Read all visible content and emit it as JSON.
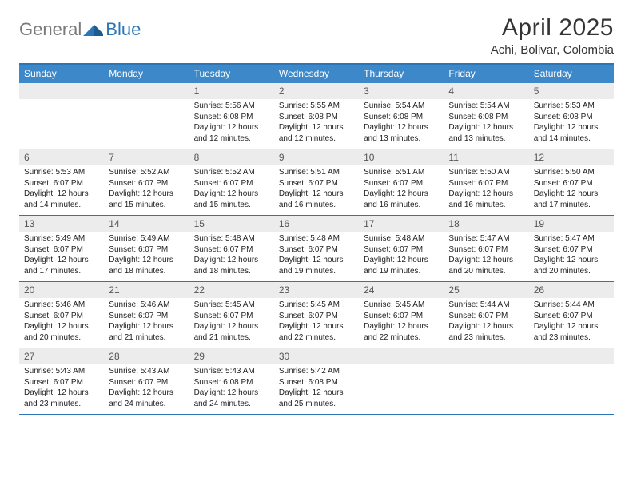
{
  "logo": {
    "gray": "General",
    "blue": "Blue"
  },
  "title": "April 2025",
  "subtitle": "Achi, Bolivar, Colombia",
  "colors": {
    "header_bar": "#3d88c9",
    "border": "#2c76b8",
    "day_num_bg": "#ececec",
    "logo_gray": "#7a7a7a",
    "logo_blue": "#2c76b8"
  },
  "dow": [
    "Sunday",
    "Monday",
    "Tuesday",
    "Wednesday",
    "Thursday",
    "Friday",
    "Saturday"
  ],
  "weeks": [
    [
      null,
      null,
      {
        "n": "1",
        "sr": "5:56 AM",
        "ss": "6:08 PM",
        "dl": "12 hours and 12 minutes."
      },
      {
        "n": "2",
        "sr": "5:55 AM",
        "ss": "6:08 PM",
        "dl": "12 hours and 12 minutes."
      },
      {
        "n": "3",
        "sr": "5:54 AM",
        "ss": "6:08 PM",
        "dl": "12 hours and 13 minutes."
      },
      {
        "n": "4",
        "sr": "5:54 AM",
        "ss": "6:08 PM",
        "dl": "12 hours and 13 minutes."
      },
      {
        "n": "5",
        "sr": "5:53 AM",
        "ss": "6:08 PM",
        "dl": "12 hours and 14 minutes."
      }
    ],
    [
      {
        "n": "6",
        "sr": "5:53 AM",
        "ss": "6:07 PM",
        "dl": "12 hours and 14 minutes."
      },
      {
        "n": "7",
        "sr": "5:52 AM",
        "ss": "6:07 PM",
        "dl": "12 hours and 15 minutes."
      },
      {
        "n": "8",
        "sr": "5:52 AM",
        "ss": "6:07 PM",
        "dl": "12 hours and 15 minutes."
      },
      {
        "n": "9",
        "sr": "5:51 AM",
        "ss": "6:07 PM",
        "dl": "12 hours and 16 minutes."
      },
      {
        "n": "10",
        "sr": "5:51 AM",
        "ss": "6:07 PM",
        "dl": "12 hours and 16 minutes."
      },
      {
        "n": "11",
        "sr": "5:50 AM",
        "ss": "6:07 PM",
        "dl": "12 hours and 16 minutes."
      },
      {
        "n": "12",
        "sr": "5:50 AM",
        "ss": "6:07 PM",
        "dl": "12 hours and 17 minutes."
      }
    ],
    [
      {
        "n": "13",
        "sr": "5:49 AM",
        "ss": "6:07 PM",
        "dl": "12 hours and 17 minutes."
      },
      {
        "n": "14",
        "sr": "5:49 AM",
        "ss": "6:07 PM",
        "dl": "12 hours and 18 minutes."
      },
      {
        "n": "15",
        "sr": "5:48 AM",
        "ss": "6:07 PM",
        "dl": "12 hours and 18 minutes."
      },
      {
        "n": "16",
        "sr": "5:48 AM",
        "ss": "6:07 PM",
        "dl": "12 hours and 19 minutes."
      },
      {
        "n": "17",
        "sr": "5:48 AM",
        "ss": "6:07 PM",
        "dl": "12 hours and 19 minutes."
      },
      {
        "n": "18",
        "sr": "5:47 AM",
        "ss": "6:07 PM",
        "dl": "12 hours and 20 minutes."
      },
      {
        "n": "19",
        "sr": "5:47 AM",
        "ss": "6:07 PM",
        "dl": "12 hours and 20 minutes."
      }
    ],
    [
      {
        "n": "20",
        "sr": "5:46 AM",
        "ss": "6:07 PM",
        "dl": "12 hours and 20 minutes."
      },
      {
        "n": "21",
        "sr": "5:46 AM",
        "ss": "6:07 PM",
        "dl": "12 hours and 21 minutes."
      },
      {
        "n": "22",
        "sr": "5:45 AM",
        "ss": "6:07 PM",
        "dl": "12 hours and 21 minutes."
      },
      {
        "n": "23",
        "sr": "5:45 AM",
        "ss": "6:07 PM",
        "dl": "12 hours and 22 minutes."
      },
      {
        "n": "24",
        "sr": "5:45 AM",
        "ss": "6:07 PM",
        "dl": "12 hours and 22 minutes."
      },
      {
        "n": "25",
        "sr": "5:44 AM",
        "ss": "6:07 PM",
        "dl": "12 hours and 23 minutes."
      },
      {
        "n": "26",
        "sr": "5:44 AM",
        "ss": "6:07 PM",
        "dl": "12 hours and 23 minutes."
      }
    ],
    [
      {
        "n": "27",
        "sr": "5:43 AM",
        "ss": "6:07 PM",
        "dl": "12 hours and 23 minutes."
      },
      {
        "n": "28",
        "sr": "5:43 AM",
        "ss": "6:07 PM",
        "dl": "12 hours and 24 minutes."
      },
      {
        "n": "29",
        "sr": "5:43 AM",
        "ss": "6:08 PM",
        "dl": "12 hours and 24 minutes."
      },
      {
        "n": "30",
        "sr": "5:42 AM",
        "ss": "6:08 PM",
        "dl": "12 hours and 25 minutes."
      },
      null,
      null,
      null
    ]
  ],
  "labels": {
    "sunrise": "Sunrise:",
    "sunset": "Sunset:",
    "daylight": "Daylight:"
  }
}
